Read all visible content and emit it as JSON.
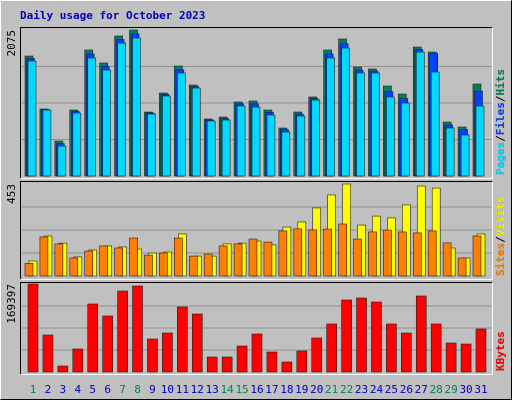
{
  "chart_data": {
    "type": "bar",
    "title": "Daily usage for October 2023",
    "categories": [
      "1",
      "2",
      "3",
      "4",
      "5",
      "6",
      "7",
      "8",
      "9",
      "10",
      "11",
      "12",
      "13",
      "14",
      "15",
      "16",
      "17",
      "18",
      "19",
      "20",
      "21",
      "22",
      "23",
      "24",
      "25",
      "26",
      "27",
      "28",
      "29",
      "30",
      "31"
    ],
    "category_colors": [
      "#00805c",
      "#0000c0",
      "#0000c0",
      "#0000c0",
      "#0000c0",
      "#0000c0",
      "#00805c",
      "#00805c",
      "#0000c0",
      "#0000c0",
      "#0000c0",
      "#0000c0",
      "#0000c0",
      "#00805c",
      "#00805c",
      "#0000c0",
      "#0000c0",
      "#0000c0",
      "#0000c0",
      "#0000c0",
      "#00805c",
      "#00805c",
      "#0000c0",
      "#0000c0",
      "#0000c0",
      "#0000c0",
      "#0000c0",
      "#00805c",
      "#00805c",
      "#0000c0",
      "#0000c0"
    ],
    "legend_separator": "/",
    "panels": [
      {
        "ylim": [
          0,
          2075
        ],
        "yticks": [
          2075
        ],
        "series": [
          {
            "name": "Hits",
            "color": "#00805c",
            "values": [
              1705,
              952,
              497,
              938,
              1791,
              1606,
              1990,
              2075,
              909,
              1179,
              1563,
              1293,
              810,
              838,
              1052,
              1066,
              938,
              682,
              909,
              1123,
              1791,
              1947,
              1549,
              1521,
              1279,
              1165,
              1833,
              1762,
              767,
              696,
              1307
            ]
          },
          {
            "name": "Files",
            "color": "#0040ff",
            "values": [
              1670,
              945,
              460,
              915,
              1735,
              1560,
              1940,
              2020,
              895,
              1160,
              1510,
              1270,
              795,
              815,
              1025,
              1025,
              905,
              660,
              880,
              1100,
              1735,
              1880,
              1505,
              1490,
              1200,
              1100,
              1800,
              1740,
              725,
              660,
              1207
            ]
          },
          {
            "name": "Pages",
            "color": "#00d8ff",
            "values": [
              1634,
              938,
              426,
              895,
              1677,
              1506,
              1890,
              1961,
              881,
              1137,
              1464,
              1250,
              782,
              796,
              995,
              980,
              867,
              625,
              853,
              1080,
              1677,
              1819,
              1464,
              1464,
              1123,
              1037,
              1762,
              1478,
              682,
              583,
              995
            ]
          }
        ]
      },
      {
        "ylim": [
          0,
          453
        ],
        "yticks": [
          453
        ],
        "series": [
          {
            "name": "Sites",
            "color": "#ff8000",
            "values": [
              62,
              192,
              158,
              89,
              123,
              148,
              138,
              187,
              103,
              113,
              187,
              98,
              108,
              148,
              158,
              182,
              167,
              222,
              232,
              227,
              231,
              256,
              182,
              217,
              226,
              217,
              212,
              222,
              163,
              89,
              197
            ]
          },
          {
            "name": "Visits",
            "color": "#ffff00",
            "values": [
              74,
              197,
              162,
              94,
              128,
              148,
              143,
              133,
              113,
              118,
              207,
              98,
              98,
              158,
              162,
              172,
              153,
              241,
              266,
              335,
              399,
              453,
              251,
              295,
              286,
              350,
              443,
              433,
              138,
              89,
              207
            ]
          }
        ]
      },
      {
        "ylim": [
          0,
          169397
        ],
        "yticks": [
          169397
        ],
        "series": [
          {
            "name": "KBytes",
            "color": "#ff0000",
            "values": [
              169397,
              71225,
              11550,
              44275,
              130900,
              107800,
              155925,
              165550,
              63525,
              75075,
              125125,
              111650,
              28875,
              28875,
              50050,
              73150,
              38500,
              19250,
              40425,
              65450,
              92400,
              138600,
              142450,
              134750,
              92400,
              75075,
              146300,
              92400,
              55825,
              53900,
              82775
            ]
          }
        ]
      }
    ]
  }
}
